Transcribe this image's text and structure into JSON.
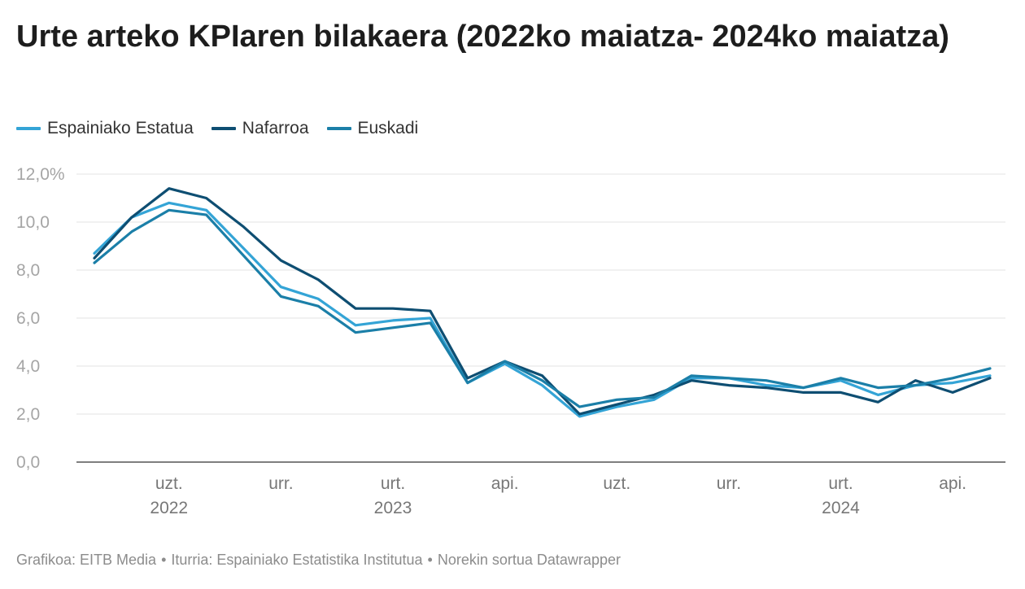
{
  "title": "Urte arteko KPIaren bilakaera (2022ko maiatza- 2024ko maiatza)",
  "footer": {
    "graph": "Grafikoa: EITB Media",
    "source": "Iturria: Espainiako Estatistika Institutua",
    "tool": "Norekin sortua Datawrapper",
    "separator": "•"
  },
  "chart_data": {
    "type": "line",
    "x": [
      "2022-05",
      "2022-06",
      "2022-07",
      "2022-08",
      "2022-09",
      "2022-10",
      "2022-11",
      "2022-12",
      "2023-01",
      "2023-02",
      "2023-03",
      "2023-04",
      "2023-05",
      "2023-06",
      "2023-07",
      "2023-08",
      "2023-09",
      "2023-10",
      "2023-11",
      "2023-12",
      "2024-01",
      "2024-02",
      "2024-03",
      "2024-04",
      "2024-05"
    ],
    "series": [
      {
        "name": "Espainiako Estatua",
        "color": "#34a4d6",
        "values": [
          8.7,
          10.2,
          10.8,
          10.5,
          8.9,
          7.3,
          6.8,
          5.7,
          5.9,
          6.0,
          3.3,
          4.1,
          3.2,
          1.9,
          2.3,
          2.6,
          3.5,
          3.5,
          3.2,
          3.1,
          3.4,
          2.8,
          3.2,
          3.3,
          3.6
        ]
      },
      {
        "name": "Nafarroa",
        "color": "#0e4e72",
        "values": [
          8.5,
          10.2,
          11.4,
          11.0,
          9.8,
          8.4,
          7.6,
          6.4,
          6.4,
          6.3,
          3.5,
          4.2,
          3.6,
          2.0,
          2.4,
          2.8,
          3.4,
          3.2,
          3.1,
          2.9,
          2.9,
          2.5,
          3.4,
          2.9,
          3.5
        ]
      },
      {
        "name": "Euskadi",
        "color": "#1b7fa8",
        "values": [
          8.3,
          9.6,
          10.5,
          10.3,
          8.6,
          6.9,
          6.5,
          5.4,
          5.6,
          5.8,
          3.3,
          4.2,
          3.4,
          2.3,
          2.6,
          2.7,
          3.6,
          3.5,
          3.4,
          3.1,
          3.5,
          3.1,
          3.2,
          3.5,
          3.9
        ]
      }
    ],
    "y_ticks": [
      "0,0",
      "2,0",
      "4,0",
      "6,0",
      "8,0",
      "10,0",
      "12,0%"
    ],
    "y_tick_values": [
      0,
      2,
      4,
      6,
      8,
      10,
      12
    ],
    "ylim": [
      0,
      12
    ],
    "x_ticks": [
      {
        "month": "uzt.",
        "year": "2022",
        "index": 2
      },
      {
        "month": "urr.",
        "year": "",
        "index": 5
      },
      {
        "month": "urt.",
        "year": "2023",
        "index": 8
      },
      {
        "month": "api.",
        "year": "",
        "index": 11
      },
      {
        "month": "uzt.",
        "year": "",
        "index": 14
      },
      {
        "month": "urr.",
        "year": "",
        "index": 17
      },
      {
        "month": "urt.",
        "year": "2024",
        "index": 20
      },
      {
        "month": "api.",
        "year": "",
        "index": 23
      }
    ],
    "grid": true,
    "legend_position": "top-left"
  }
}
